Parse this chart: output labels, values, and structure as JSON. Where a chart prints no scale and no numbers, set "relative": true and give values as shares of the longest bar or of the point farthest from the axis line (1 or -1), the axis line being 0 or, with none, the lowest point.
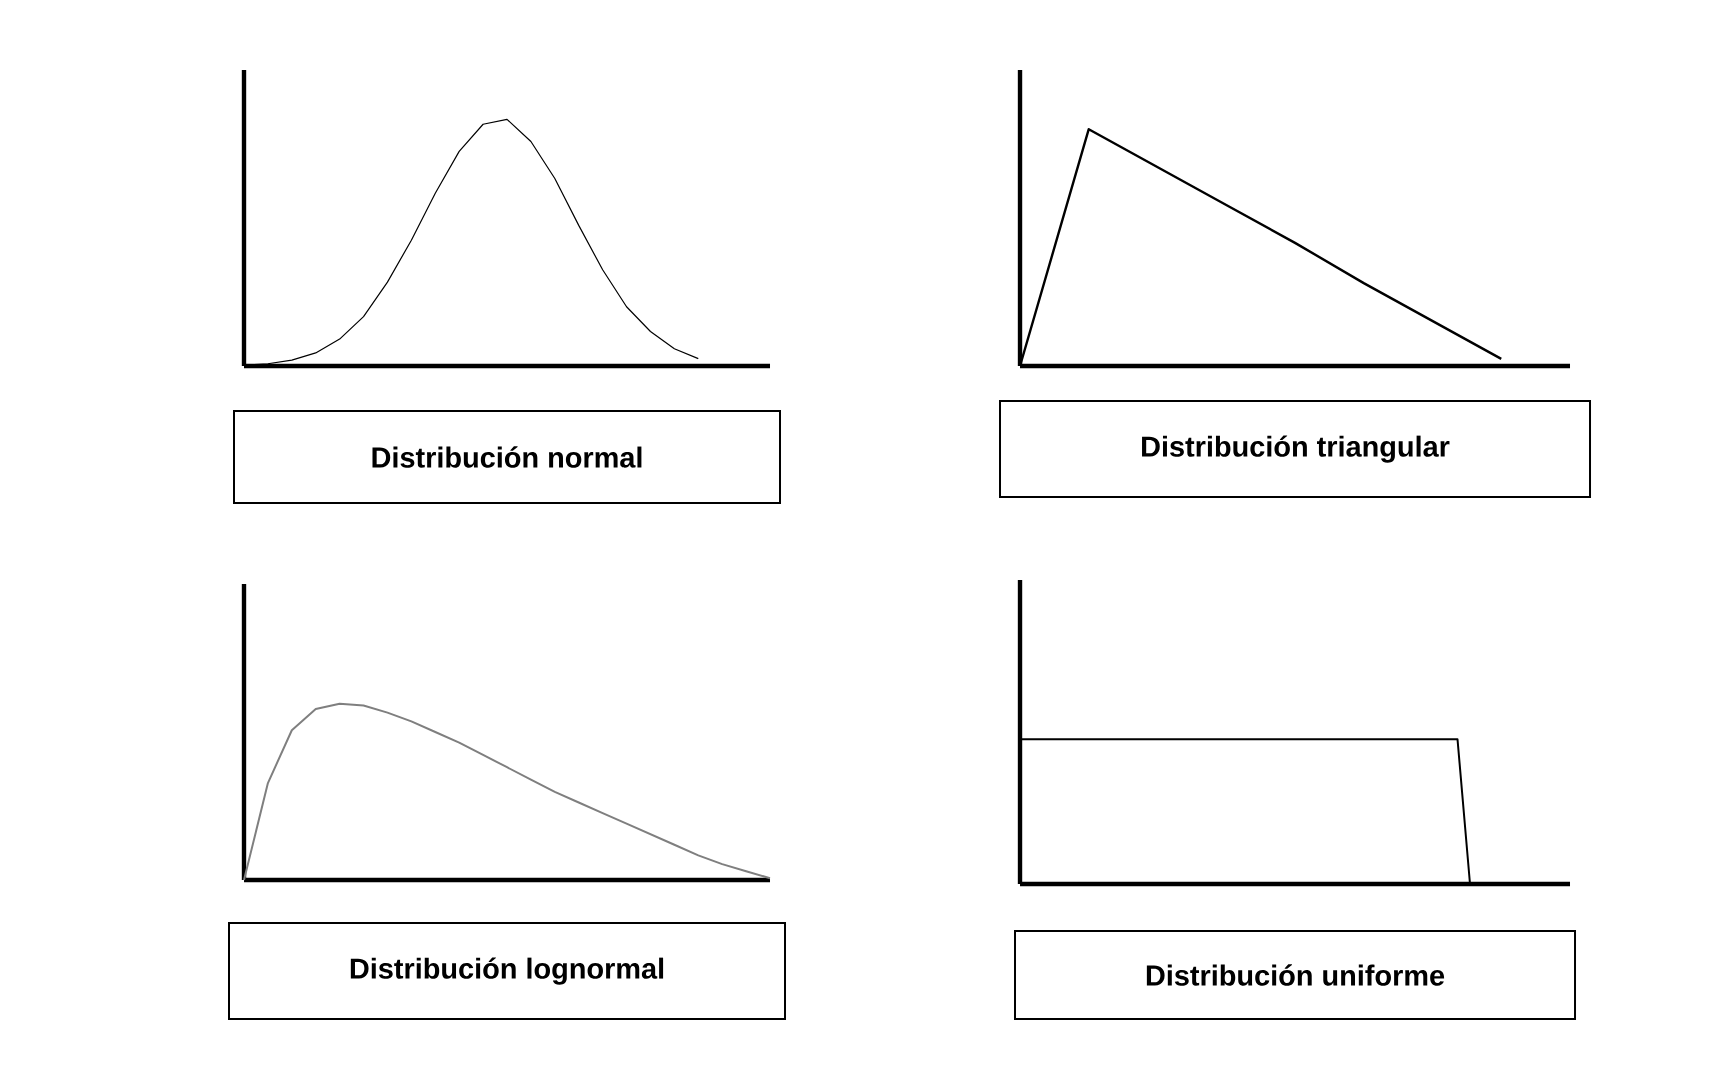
{
  "chart_data": [
    {
      "type": "line",
      "title": "Distribución normal",
      "relative": true,
      "color": "#000000",
      "categories": [
        null,
        null,
        null,
        null,
        null,
        null,
        null,
        null,
        null,
        null,
        null,
        null,
        null,
        null,
        null,
        null,
        null,
        null,
        null,
        null,
        null,
        null,
        null
      ],
      "values": [
        0.003,
        0.009,
        0.024,
        0.053,
        0.109,
        0.2,
        0.34,
        0.51,
        0.7,
        0.87,
        0.98,
        1,
        0.91,
        0.76,
        0.57,
        0.39,
        0.24,
        0.14,
        0.07,
        0.03,
        null,
        null,
        null
      ]
    },
    {
      "type": "line",
      "title": "Distribución triangular",
      "relative": true,
      "color": "#000000",
      "categories": [
        null,
        null,
        null,
        null,
        null,
        null,
        null,
        null,
        null
      ],
      "values": [
        0,
        1,
        0.84,
        0.68,
        0.52,
        0.35,
        0.19,
        0.03,
        null
      ]
    },
    {
      "type": "line",
      "title": "Distribución lognormal",
      "relative": true,
      "color": "#7f7f7f",
      "categories": [
        null,
        null,
        null,
        null,
        null,
        null,
        null,
        null,
        null,
        null,
        null,
        null,
        null,
        null,
        null,
        null,
        null,
        null,
        null,
        null,
        null,
        null,
        null
      ],
      "values": [
        0,
        0.55,
        0.85,
        0.97,
        1,
        0.99,
        0.95,
        0.9,
        0.84,
        0.78,
        0.71,
        0.64,
        0.57,
        0.5,
        0.44,
        0.38,
        0.32,
        0.26,
        0.2,
        0.14,
        0.09,
        0.05,
        0.01
      ]
    },
    {
      "type": "line",
      "title": "Distribución uniforme",
      "relative": true,
      "color": "#000000",
      "categories": [
        null,
        null,
        null,
        null,
        null,
        null,
        null,
        null,
        null,
        null,
        null,
        null,
        null,
        null,
        null,
        null,
        null,
        null,
        null,
        null,
        null,
        null,
        null,
        null,
        null,
        null,
        null,
        null,
        null,
        null,
        null,
        null,
        null,
        null,
        null,
        null,
        null,
        null,
        null,
        null,
        null,
        null,
        null,
        null,
        null
      ],
      "values": [
        1,
        1,
        1,
        1,
        1,
        1,
        1,
        1,
        1,
        1,
        1,
        1,
        1,
        1,
        1,
        1,
        1,
        1,
        1,
        1,
        1,
        1,
        1,
        1,
        1,
        1,
        1,
        1,
        1,
        1,
        1,
        1,
        1,
        1,
        1,
        1,
        0,
        null,
        null,
        null,
        null,
        null,
        null,
        null,
        null
      ]
    }
  ]
}
